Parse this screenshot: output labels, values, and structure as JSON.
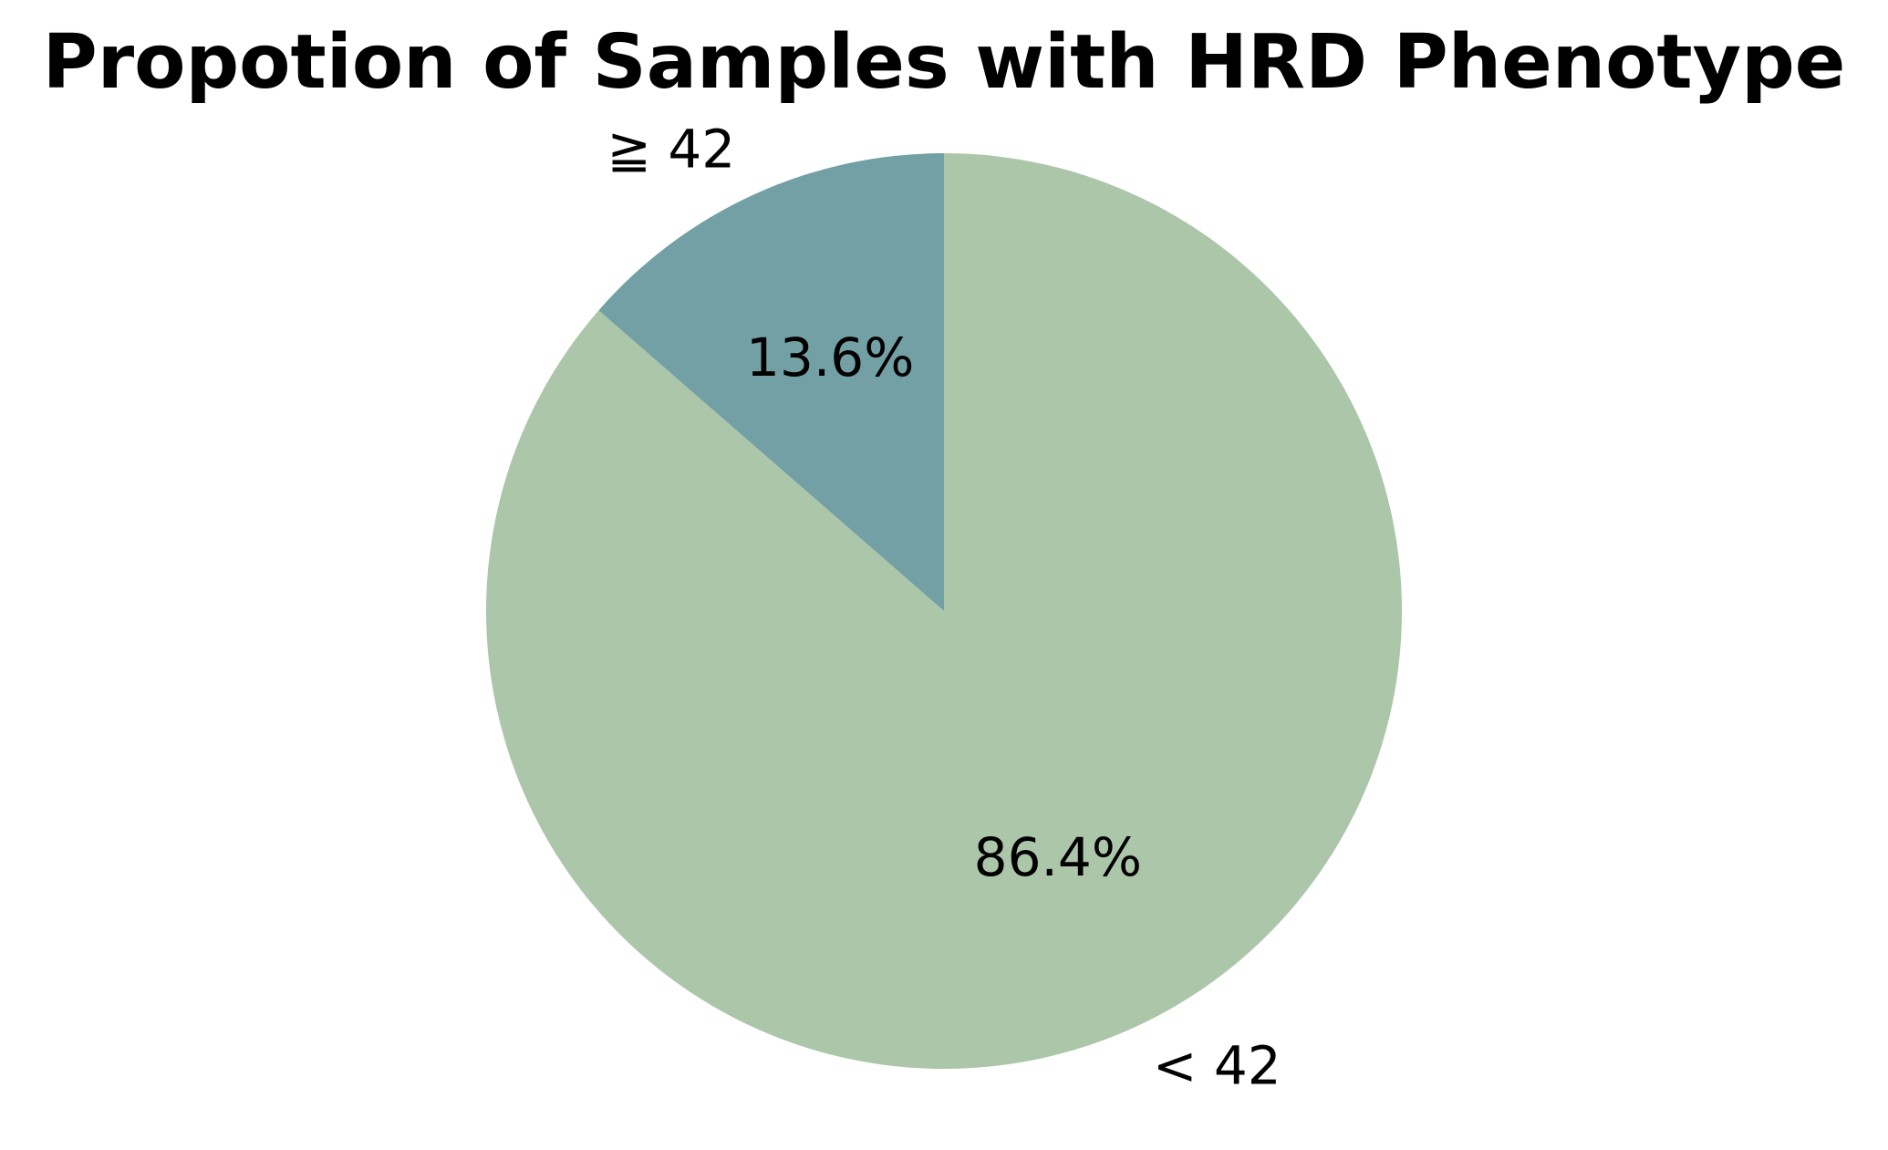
{
  "chart_data": {
    "type": "pie",
    "title": "Propotion of Samples with HRD Phenotype",
    "start_angle_deg": 90,
    "direction": "counterclockwise",
    "slices": [
      {
        "label": "≧ 42",
        "value": 13.6,
        "pct_label": "13.6%",
        "color": "#72a0a4"
      },
      {
        "label": "< 42",
        "value": 86.4,
        "pct_label": "86.4%",
        "color": "#acc6aa"
      }
    ]
  }
}
